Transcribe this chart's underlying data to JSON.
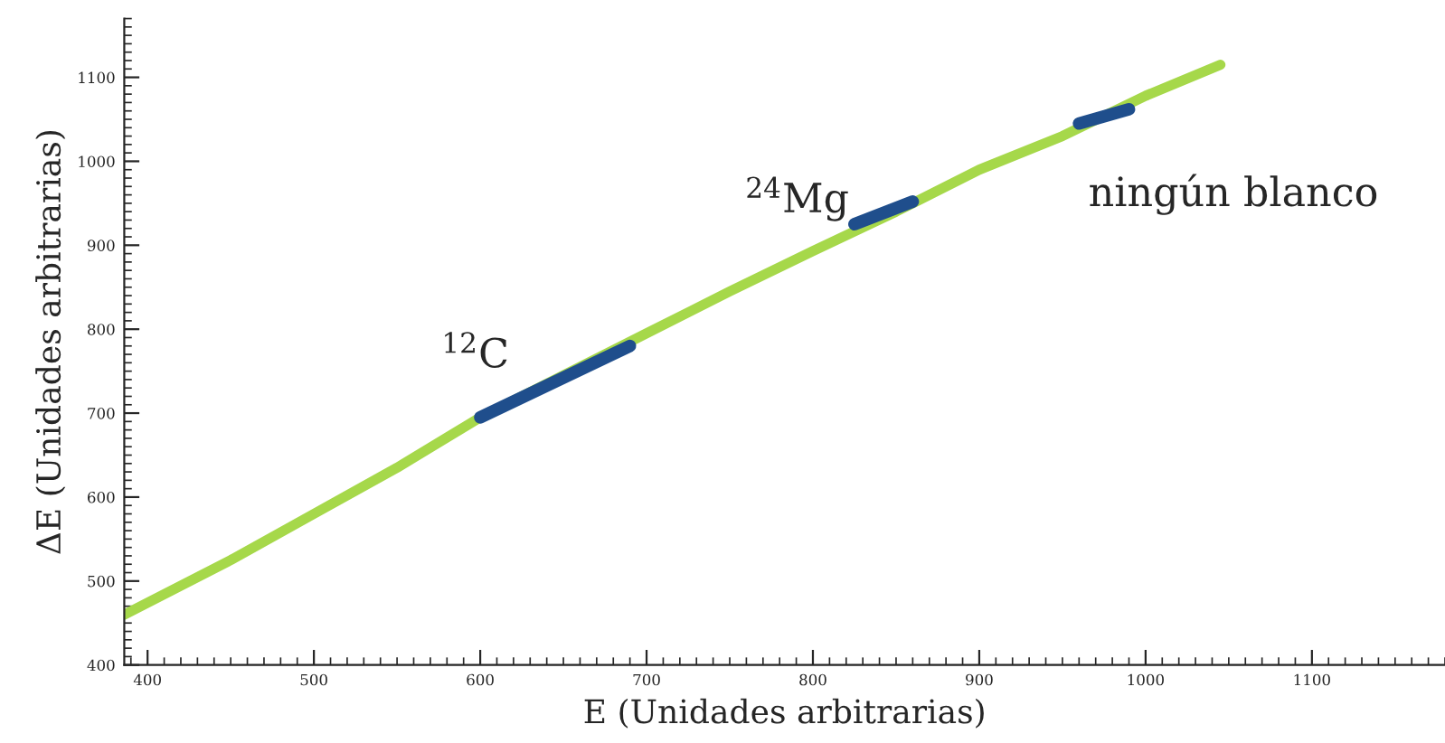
{
  "chart_data": {
    "type": "line",
    "xlabel": "E (Unidades arbitrarias)",
    "ylabel": "ΔE (Unidades arbitrarias)",
    "xlim": [
      386,
      1180
    ],
    "ylim": [
      400,
      1170
    ],
    "xticks": [
      400,
      500,
      600,
      700,
      800,
      900,
      1000,
      1100
    ],
    "yticks": [
      400,
      500,
      600,
      700,
      800,
      900,
      1000,
      1100
    ],
    "grid": false,
    "legend": false,
    "marker": "none",
    "line_style": "solid",
    "series": [
      {
        "color": "#a6d84a",
        "x": [
          386,
          450,
          500,
          550,
          600,
          650,
          700,
          750,
          800,
          850,
          900,
          950,
          1000,
          1045
        ],
        "values": [
          460,
          525,
          580,
          635,
          695,
          745,
          795,
          845,
          893,
          940,
          990,
          1030,
          1078,
          1115
        ]
      },
      {
        "color": "#1f4e8c",
        "x": [
          600,
          690
        ],
        "values": [
          695,
          780
        ]
      },
      {
        "color": "#1f4e8c",
        "x": [
          825,
          860
        ],
        "values": [
          925,
          952
        ]
      },
      {
        "color": "#1f4e8c",
        "x": [
          960,
          990
        ],
        "values": [
          1045,
          1062
        ]
      }
    ],
    "annotations": [
      "$^{12}$C",
      "$^{24}$Mg",
      "ningún blanco"
    ]
  }
}
